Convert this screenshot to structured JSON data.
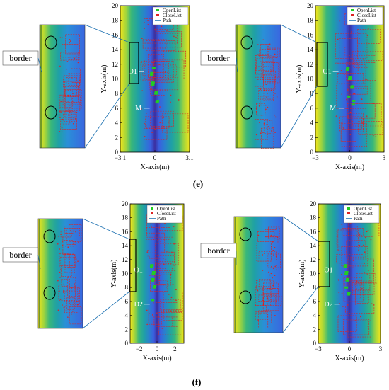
{
  "captions": [
    "(e)",
    "(f)"
  ],
  "legend": {
    "open_label": "OpenList",
    "close_label": "CloseList",
    "path_label": "Path",
    "open_color": "#22cc22",
    "close_color": "#dd2222",
    "path_color": "#1a6fb0"
  },
  "chart_data": [
    {
      "type": "scatter",
      "panel": "e-left",
      "xlabel": "X-axis(m)",
      "ylabel": "Y-axis(m)",
      "xlim": [
        -3.1,
        3.1
      ],
      "ylim": [
        0,
        20
      ],
      "xticks": [
        -3.1,
        0,
        3.1
      ],
      "xtick_labels": [
        "−3.1",
        "0",
        "3.1"
      ],
      "yticks": [
        0,
        2,
        4,
        6,
        8,
        10,
        12,
        14,
        16,
        18,
        20
      ],
      "annotations": [
        {
          "text": "O1",
          "x": -1.6,
          "y": 11
        },
        {
          "text": "M",
          "x": -1.1,
          "y": 6
        }
      ],
      "zoom_label": "border",
      "series": [
        {
          "name": "OpenList",
          "x": [
            -0.3,
            -0.2,
            0.1,
            0.2,
            -0.1
          ],
          "y": [
            10.5,
            9.2,
            8.0,
            6.8,
            11.5
          ]
        },
        {
          "name": "Path",
          "x": [
            -0.3,
            -0.2,
            0.1,
            0.2
          ],
          "y": [
            10.8,
            9.5,
            8.2,
            7.0
          ]
        }
      ]
    },
    {
      "type": "scatter",
      "panel": "e-right",
      "xlabel": "X-axis(m)",
      "ylabel": "Y-axis(m)",
      "xlim": [
        -3,
        3
      ],
      "ylim": [
        0,
        20
      ],
      "xticks": [
        -3,
        0,
        3
      ],
      "xtick_labels": [
        "−3",
        "0",
        "3"
      ],
      "yticks": [
        0,
        2,
        4,
        6,
        8,
        10,
        12,
        14,
        16,
        18,
        20
      ],
      "annotations": [
        {
          "text": "O1",
          "x": -1.6,
          "y": 11
        },
        {
          "text": "M",
          "x": -1.1,
          "y": 6
        }
      ],
      "zoom_label": "border",
      "series": [
        {
          "name": "OpenList",
          "x": [
            -0.2,
            0.0,
            0.2,
            -0.1,
            0.3
          ],
          "y": [
            11.2,
            10.0,
            8.8,
            7.6,
            6.5
          ]
        },
        {
          "name": "Path",
          "x": [
            -0.2,
            0.0,
            0.2,
            0.3
          ],
          "y": [
            11.5,
            10.2,
            9.0,
            7.0
          ]
        }
      ]
    },
    {
      "type": "scatter",
      "panel": "f-left",
      "xlabel": "X-axis(m)",
      "ylabel": "Y-axis(m)",
      "xlim": [
        -3,
        3
      ],
      "ylim": [
        0,
        20
      ],
      "xticks": [
        -2,
        0,
        2
      ],
      "xtick_labels": [
        "−2",
        "0",
        "2"
      ],
      "yticks": [
        0,
        2,
        4,
        6,
        8,
        10,
        12,
        14,
        16,
        18,
        20
      ],
      "annotations": [
        {
          "text": "O1",
          "x": -1.6,
          "y": 10.5
        },
        {
          "text": "D2",
          "x": -1.6,
          "y": 5.6
        }
      ],
      "zoom_label": "border",
      "series": [
        {
          "name": "OpenList",
          "x": [
            -0.6,
            -0.4,
            -0.5,
            -0.3,
            -0.5
          ],
          "y": [
            11.0,
            10.0,
            9.0,
            8.0,
            6.2
          ]
        },
        {
          "name": "Path",
          "x": [
            -0.6,
            -0.4,
            -0.5,
            -0.3
          ],
          "y": [
            11.2,
            10.2,
            9.2,
            8.2
          ]
        }
      ]
    },
    {
      "type": "scatter",
      "panel": "f-right",
      "xlabel": "X-axis(m)",
      "ylabel": "Y-axis(m)",
      "xlim": [
        -3,
        3
      ],
      "ylim": [
        0,
        20
      ],
      "xticks": [
        -3,
        0,
        3
      ],
      "xtick_labels": [
        "−3",
        "0",
        "3"
      ],
      "yticks": [
        0,
        2,
        4,
        6,
        8,
        10,
        12,
        14,
        16,
        18,
        20
      ],
      "annotations": [
        {
          "text": "O1",
          "x": -1.6,
          "y": 10.5
        },
        {
          "text": "D2",
          "x": -1.6,
          "y": 5.6
        }
      ],
      "zoom_label": "border",
      "series": [
        {
          "name": "OpenList",
          "x": [
            -0.4,
            -0.3,
            -0.2,
            -0.3,
            -0.1
          ],
          "y": [
            11.0,
            10.0,
            9.0,
            8.0,
            7.0
          ]
        },
        {
          "name": "Path",
          "x": [
            -0.4,
            -0.3,
            -0.2,
            -0.1
          ],
          "y": [
            11.2,
            10.2,
            9.2,
            7.2
          ]
        }
      ]
    }
  ]
}
